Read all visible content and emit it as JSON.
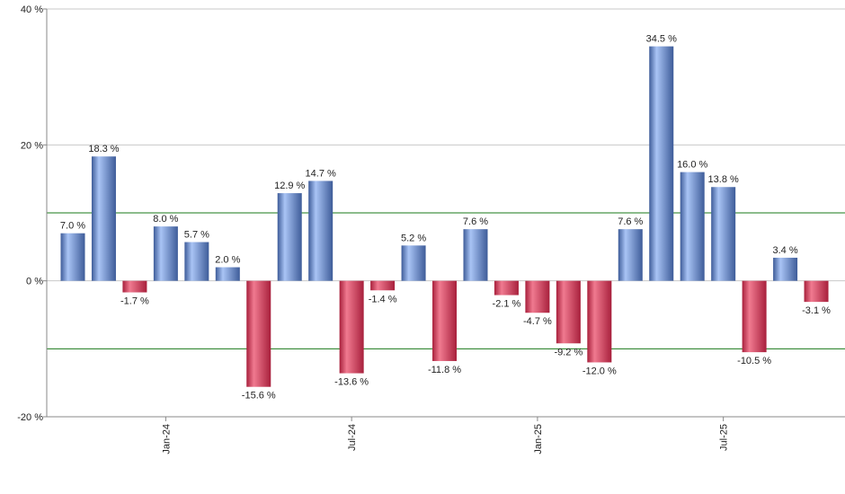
{
  "chart_data": {
    "type": "bar",
    "categories": [
      null,
      null,
      null,
      "Jan-24",
      null,
      null,
      null,
      null,
      null,
      "Jul-24",
      null,
      null,
      null,
      null,
      null,
      "Jan-25",
      null,
      null,
      null,
      null,
      null,
      "Jul-25",
      null,
      null,
      null
    ],
    "values": [
      7.0,
      18.3,
      -1.7,
      8.0,
      5.7,
      2.0,
      -15.6,
      12.9,
      14.7,
      -13.6,
      -1.4,
      5.2,
      -11.8,
      7.6,
      -2.1,
      -4.7,
      -9.2,
      -12.0,
      7.6,
      34.5,
      16.0,
      13.8,
      -10.5,
      3.4,
      -3.1
    ],
    "value_labels": [
      "7.0 %",
      "18.3 %",
      "-1.7 %",
      "8.0 %",
      "5.7 %",
      "2.0 %",
      "-15.6 %",
      "12.9 %",
      "14.7 %",
      "-13.6 %",
      "-1.4 %",
      "5.2 %",
      "-11.8 %",
      "7.6 %",
      "-2.1 %",
      "-4.7 %",
      "-9.2 %",
      "-12.0 %",
      "7.6 %",
      "34.5 %",
      "16.0 %",
      "13.8 %",
      "-10.5 %",
      "3.4 %",
      "-3.1 %"
    ],
    "positive_colors": [
      "#a9c4f5",
      "#3e5c99"
    ],
    "negative_colors": [
      "#f07a90",
      "#a8203c"
    ],
    "ylim": [
      -20,
      40
    ],
    "yticks": [
      {
        "value": -20,
        "label": "-20 %"
      },
      {
        "value": 0,
        "label": "0 %"
      },
      {
        "value": 20,
        "label": "20 %"
      },
      {
        "value": 40,
        "label": "40 %"
      }
    ],
    "grid": true,
    "reference_lines": [
      10,
      -10
    ],
    "reference_color": "#1a7a1a"
  }
}
